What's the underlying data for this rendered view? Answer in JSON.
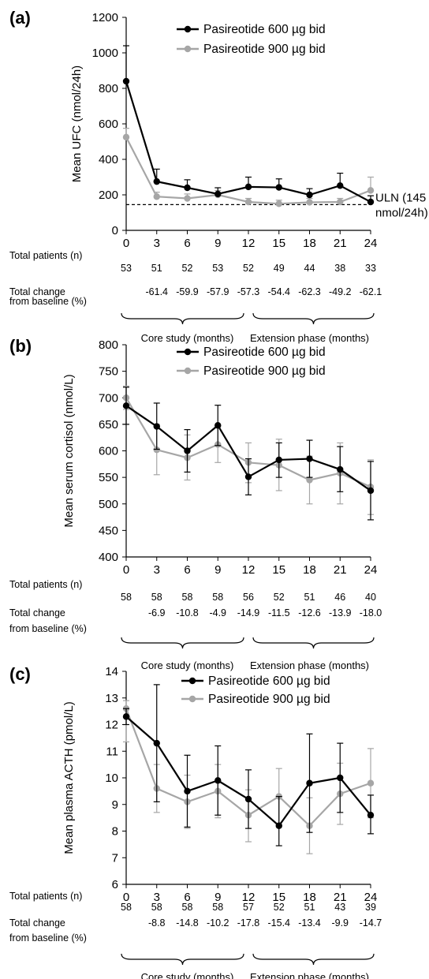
{
  "chart_data": [
    {
      "type": "line",
      "panel_label": "(a)",
      "ylabel": "Mean UFC (nmol/24h)",
      "ylim": [
        0,
        1200
      ],
      "yticks": [
        0,
        200,
        400,
        600,
        800,
        1000,
        1200
      ],
      "x": [
        0,
        3,
        6,
        9,
        12,
        15,
        18,
        21,
        24
      ],
      "series": [
        {
          "name": "Pasireotide 600 µg bid",
          "color": "#000000",
          "values": [
            840,
            275,
            240,
            205,
            245,
            242,
            200,
            252,
            160
          ],
          "err_upper": [
            1040,
            345,
            285,
            240,
            300,
            290,
            235,
            322,
            195
          ]
        },
        {
          "name": "Pasireotide 900 µg bid",
          "color": "#a6a6a6",
          "values": [
            525,
            190,
            180,
            200,
            160,
            150,
            158,
            160,
            225
          ],
          "err_upper": [
            575,
            215,
            205,
            225,
            180,
            170,
            180,
            180,
            300
          ]
        }
      ],
      "reference_line": {
        "value": 145,
        "label_line1": "ULN (145",
        "label_line2": "nmol/24h)"
      },
      "total_patients_label": "Total patients (n)",
      "total_patients": [
        "53",
        "51",
        "52",
        "53",
        "52",
        "49",
        "44",
        "38",
        "33"
      ],
      "change_label_line1": "Total change",
      "change_label_line2": "from baseline (%)",
      "change": [
        "",
        "-61.4",
        "-59.9",
        "-57.9",
        "-57.3",
        "-54.4",
        "-62.3",
        "-49.2",
        "-62.1"
      ],
      "phase_labels": [
        "Core study (months)",
        "Extension phase (months)"
      ]
    },
    {
      "type": "line",
      "panel_label": "(b)",
      "ylabel": "Mean serum cortisol (nmol/L)",
      "ylim": [
        400,
        800
      ],
      "yticks": [
        400,
        450,
        500,
        550,
        600,
        650,
        700,
        750,
        800
      ],
      "x": [
        0,
        3,
        6,
        9,
        12,
        15,
        18,
        21,
        24
      ],
      "series": [
        {
          "name": "Pasireotide 600 µg bid",
          "color": "#000000",
          "values": [
            685,
            646,
            600,
            648,
            551,
            583,
            585,
            565,
            525
          ],
          "err_upper": [
            720,
            690,
            640,
            686,
            585,
            615,
            620,
            608,
            580
          ],
          "err_lower": [
            650,
            603,
            560,
            610,
            517,
            550,
            550,
            523,
            470
          ]
        },
        {
          "name": "Pasireotide 900 µg bid",
          "color": "#a6a6a6",
          "values": [
            700,
            602,
            587,
            612,
            578,
            573,
            545,
            558,
            532
          ],
          "err_upper": [
            722,
            650,
            630,
            648,
            615,
            622,
            590,
            615,
            583
          ],
          "err_lower": [
            678,
            555,
            545,
            578,
            540,
            525,
            500,
            500,
            480
          ]
        }
      ],
      "total_patients_label": "Total patients (n)",
      "total_patients": [
        "58",
        "58",
        "58",
        "58",
        "56",
        "52",
        "51",
        "46",
        "40"
      ],
      "change_label_line1": "Total change",
      "change_label_line2": "from baseline (%)",
      "change": [
        "",
        "-6.9",
        "-10.8",
        "-4.9",
        "-14.9",
        "-11.5",
        "-12.6",
        "-13.9",
        "-18.0"
      ],
      "phase_labels": [
        "Core study (months)",
        "Extension phase (months)"
      ]
    },
    {
      "type": "line",
      "panel_label": "(c)",
      "ylabel": "Mean plasma ACTH (pmol/L)",
      "ylim": [
        6,
        14
      ],
      "yticks": [
        6,
        7,
        8,
        9,
        10,
        11,
        12,
        13,
        14
      ],
      "x": [
        0,
        3,
        6,
        9,
        12,
        15,
        18,
        21,
        24
      ],
      "series": [
        {
          "name": "Pasireotide 600 µg bid",
          "color": "#000000",
          "values": [
            12.3,
            11.3,
            9.5,
            9.9,
            9.2,
            8.2,
            9.8,
            10.0,
            8.6
          ],
          "err_upper": [
            12.6,
            13.5,
            10.85,
            11.2,
            10.3,
            9.3,
            11.65,
            11.3,
            9.35
          ],
          "err_lower": [
            12.0,
            9.1,
            8.15,
            8.6,
            8.1,
            7.45,
            7.95,
            8.7,
            7.9
          ]
        },
        {
          "name": "Pasireotide 900 µg bid",
          "color": "#a6a6a6",
          "values": [
            12.6,
            9.6,
            9.1,
            9.5,
            8.6,
            9.3,
            8.2,
            9.4,
            9.8
          ],
          "err_upper": [
            12.9,
            10.5,
            10.1,
            10.5,
            9.55,
            10.35,
            9.25,
            10.55,
            11.1
          ],
          "err_lower": [
            11.35,
            8.7,
            8.1,
            8.5,
            7.6,
            8.25,
            7.15,
            8.25,
            8.5
          ]
        }
      ],
      "total_patients_label": "Total patients (n)",
      "total_patients": [
        "58",
        "58",
        "58",
        "58",
        "57",
        "52",
        "51",
        "43",
        "39"
      ],
      "change_label_line1": "Total change",
      "change_label_line2": "from baseline (%)",
      "change": [
        "",
        "-8.8",
        "-14.8",
        "-10.2",
        "-17.8",
        "-15.4",
        "-13.4",
        "-9.9",
        "-14.7"
      ],
      "phase_labels": [
        "Core study (months)",
        "Extension phase (months)"
      ]
    }
  ]
}
